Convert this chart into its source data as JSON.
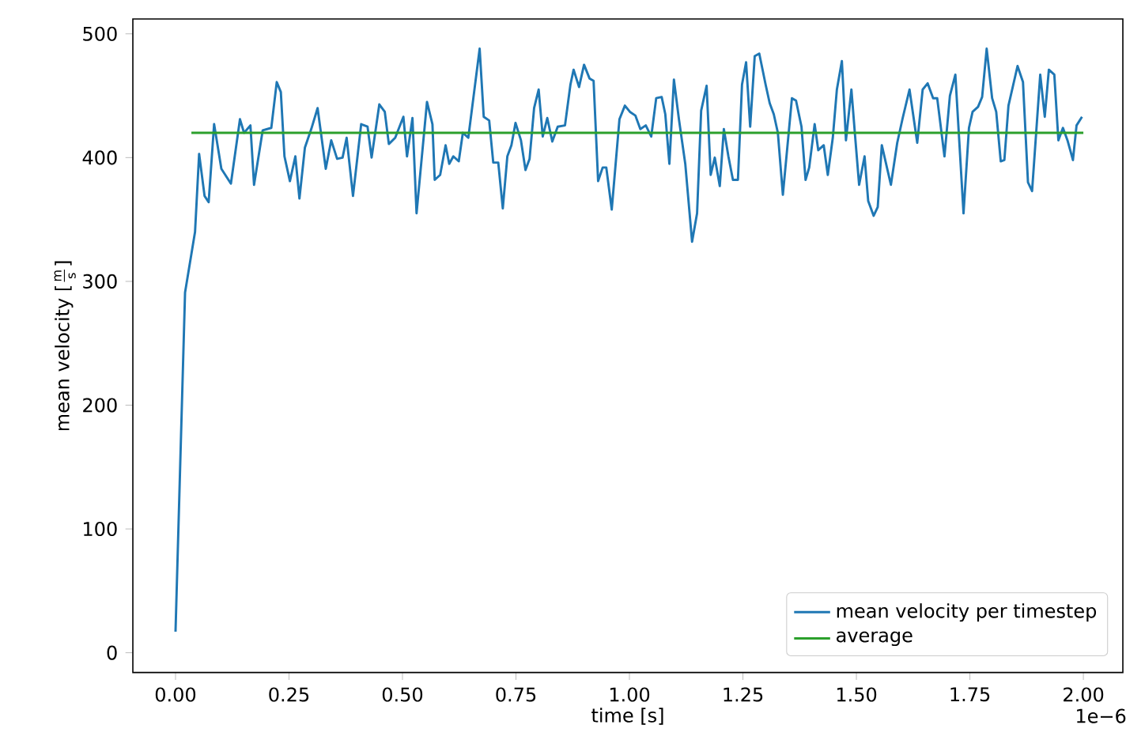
{
  "chart_data": {
    "type": "line",
    "xlabel": "time [s]",
    "ylabel": "\\textrm{mean velocity [}\\frac{\\mathrm{m}}{\\mathrm{s}}\\textrm{]}",
    "annotations": [
      "1e−6"
    ],
    "xlim": [
      -0.094,
      2.087
    ],
    "ylim": [
      -16,
      512
    ],
    "xticks": [
      {
        "value": 0,
        "label": "0.00"
      },
      {
        "value": 0.25,
        "label": "0.25"
      },
      {
        "value": 0.5,
        "label": "0.50"
      },
      {
        "value": 0.75,
        "label": "0.75"
      },
      {
        "value": 1,
        "label": "1.00"
      },
      {
        "value": 1.25,
        "label": "1.25"
      },
      {
        "value": 1.5,
        "label": "1.50"
      },
      {
        "value": 1.75,
        "label": "1.75"
      },
      {
        "value": 2,
        "label": "2.00"
      }
    ],
    "yticks": [
      0,
      100,
      200,
      300,
      400,
      500
    ],
    "grid": false,
    "legend": "bottom right",
    "marker": "none",
    "series": [
      {
        "name": "mean velocity per timestep",
        "color": "#1f77b4",
        "x": [
          0,
          0.021,
          0.043,
          0.052,
          0.064,
          0.073,
          0.085,
          0.101,
          0.122,
          0.142,
          0.151,
          0.165,
          0.173,
          0.192,
          0.211,
          0.223,
          0.232,
          0.24,
          0.252,
          0.264,
          0.273,
          0.285,
          0.299,
          0.313,
          0.331,
          0.343,
          0.356,
          0.368,
          0.377,
          0.391,
          0.409,
          0.423,
          0.432,
          0.449,
          0.461,
          0.47,
          0.484,
          0.502,
          0.51,
          0.522,
          0.531,
          0.554,
          0.566,
          0.571,
          0.583,
          0.595,
          0.603,
          0.612,
          0.624,
          0.633,
          0.645,
          0.67,
          0.679,
          0.691,
          0.7,
          0.711,
          0.721,
          0.731,
          0.74,
          0.749,
          0.761,
          0.771,
          0.78,
          0.79,
          0.8,
          0.809,
          0.819,
          0.83,
          0.842,
          0.858,
          0.87,
          0.877,
          0.889,
          0.9,
          0.912,
          0.921,
          0.931,
          0.941,
          0.949,
          0.961,
          0.978,
          0.99,
          1.001,
          1.013,
          1.024,
          1.036,
          1.048,
          1.059,
          1.071,
          1.079,
          1.088,
          1.098,
          1.109,
          1.123,
          1.138,
          1.149,
          1.158,
          1.17,
          1.179,
          1.188,
          1.199,
          1.208,
          1.218,
          1.228,
          1.239,
          1.248,
          1.257,
          1.266,
          1.276,
          1.286,
          1.3,
          1.309,
          1.318,
          1.327,
          1.338,
          1.358,
          1.367,
          1.379,
          1.388,
          1.396,
          1.408,
          1.416,
          1.428,
          1.437,
          1.448,
          1.457,
          1.468,
          1.477,
          1.489,
          1.497,
          1.506,
          1.518,
          1.526,
          1.538,
          1.547,
          1.556,
          1.576,
          1.59,
          1.602,
          1.617,
          1.634,
          1.646,
          1.657,
          1.669,
          1.678,
          1.694,
          1.706,
          1.718,
          1.736,
          1.748,
          1.756,
          1.768,
          1.777,
          1.787,
          1.799,
          1.808,
          1.818,
          1.826,
          1.835,
          1.855,
          1.867,
          1.878,
          1.887,
          1.905,
          1.915,
          1.924,
          1.936,
          1.945,
          1.955,
          1.965,
          1.977,
          1.985,
          1.997
        ],
        "values": [
          17,
          291,
          340,
          403,
          369,
          364,
          427,
          391,
          379,
          431,
          420,
          426,
          378,
          422,
          424,
          461,
          453,
          401,
          381,
          401,
          367,
          408,
          423,
          440,
          391,
          414,
          399,
          400,
          416,
          369,
          427,
          425,
          400,
          443,
          437,
          411,
          416,
          433,
          401,
          432,
          355,
          445,
          427,
          382,
          386,
          410,
          395,
          401,
          397,
          420,
          416,
          488,
          433,
          430,
          396,
          396,
          359,
          401,
          410,
          428,
          414,
          390,
          399,
          440,
          455,
          417,
          432,
          413,
          425,
          426,
          459,
          471,
          457,
          475,
          464,
          462,
          381,
          392,
          392,
          358,
          431,
          442,
          437,
          434,
          423,
          426,
          417,
          448,
          449,
          435,
          395,
          463,
          431,
          395,
          332,
          355,
          438,
          458,
          386,
          400,
          377,
          423,
          401,
          382,
          382,
          459,
          477,
          425,
          482,
          484,
          459,
          444,
          435,
          420,
          370,
          448,
          446,
          425,
          382,
          392,
          427,
          406,
          410,
          386,
          416,
          455,
          478,
          414,
          455,
          418,
          378,
          401,
          365,
          353,
          360,
          410,
          378,
          412,
          432,
          455,
          412,
          455,
          460,
          448,
          448,
          401,
          450,
          467,
          355,
          424,
          437,
          441,
          449,
          488,
          448,
          437,
          397,
          398,
          442,
          474,
          461,
          380,
          373,
          467,
          433,
          471,
          467,
          414,
          424,
          414,
          398,
          426,
          433
        ]
      },
      {
        "name": "average",
        "color": "#2ca02c",
        "x": [
          0.035,
          2.0
        ],
        "values": [
          420,
          420
        ]
      }
    ]
  }
}
